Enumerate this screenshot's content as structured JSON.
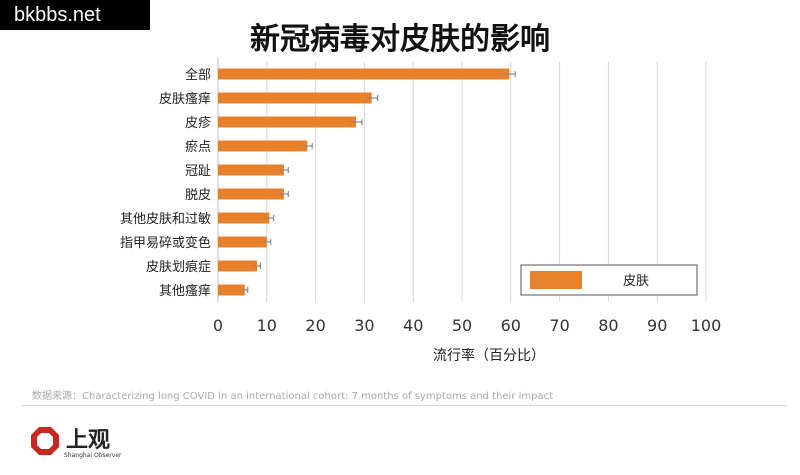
{
  "watermark": "bkbbs.net",
  "chart_data": {
    "type": "bar",
    "orientation": "horizontal",
    "title": "新冠病毒对皮肤的影响",
    "xlabel": "流行率（百分比）",
    "ylabel": "",
    "xlim": [
      0,
      100
    ],
    "xticks": [
      "0",
      "10",
      "20",
      "30",
      "40",
      "50",
      "60",
      "70",
      "80",
      "90",
      "100"
    ],
    "grid": true,
    "legend_position": "bottom-right",
    "categories": [
      "全部",
      "皮肤瘙痒",
      "皮疹",
      "瘀点",
      "冠趾",
      "脱皮",
      "其他皮肤和过敏",
      "指甲易碎或变色",
      "皮肤划痕症",
      "其他瘙痒"
    ],
    "series": [
      {
        "name": "皮肤",
        "color": "#e8822a",
        "values": [
          59.7,
          31.5,
          28.3,
          18.3,
          13.5,
          13.5,
          10.5,
          10.0,
          8.0,
          5.5
        ],
        "error": [
          1.2,
          1.2,
          1.2,
          1.0,
          0.9,
          0.9,
          0.9,
          0.8,
          0.7,
          0.6
        ]
      }
    ]
  },
  "source": "数据来源：Characterizing long COVID in an international cohort: 7 months of symptoms and their impact",
  "logo": {
    "name": "上观",
    "sub": "Shanghai Observer",
    "color": "#c8291f"
  }
}
